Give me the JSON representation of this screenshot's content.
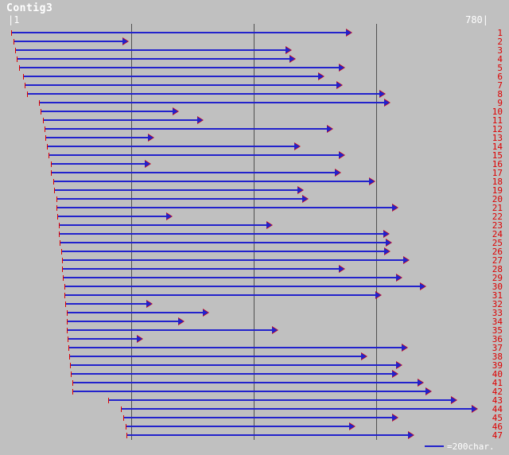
{
  "title": "Contig3",
  "scale": {
    "start_label": "|1",
    "end_label": "780|"
  },
  "legend": {
    "label": "=200char."
  },
  "colors": {
    "background": "#c0c0c0",
    "read_line": "#2222cc",
    "marker_red": "#dd0000",
    "text_white": "#ffffff",
    "gridline": "#505050"
  },
  "chart_data": {
    "type": "bar",
    "title": "Contig3",
    "subtitle": "",
    "xlabel": "",
    "ylabel": "",
    "xlim": [
      1,
      780
    ],
    "gridlines": [
      200,
      400,
      600
    ],
    "grid_interval_label": "=200char.",
    "direction_all_reads": "right",
    "reads": [
      {
        "id": 1,
        "start": 3,
        "end": 560
      },
      {
        "id": 2,
        "start": 8,
        "end": 196
      },
      {
        "id": 3,
        "start": 10,
        "end": 462
      },
      {
        "id": 4,
        "start": 13,
        "end": 469
      },
      {
        "id": 5,
        "start": 17,
        "end": 549
      },
      {
        "id": 6,
        "start": 23,
        "end": 515
      },
      {
        "id": 7,
        "start": 26,
        "end": 545
      },
      {
        "id": 8,
        "start": 29,
        "end": 615
      },
      {
        "id": 9,
        "start": 49,
        "end": 623
      },
      {
        "id": 10,
        "start": 51,
        "end": 277
      },
      {
        "id": 11,
        "start": 55,
        "end": 318
      },
      {
        "id": 12,
        "start": 58,
        "end": 529
      },
      {
        "id": 13,
        "start": 59,
        "end": 237
      },
      {
        "id": 14,
        "start": 62,
        "end": 476
      },
      {
        "id": 15,
        "start": 64,
        "end": 549
      },
      {
        "id": 16,
        "start": 68,
        "end": 232
      },
      {
        "id": 17,
        "start": 69,
        "end": 542
      },
      {
        "id": 18,
        "start": 72,
        "end": 598
      },
      {
        "id": 19,
        "start": 74,
        "end": 482
      },
      {
        "id": 20,
        "start": 77,
        "end": 489
      },
      {
        "id": 21,
        "start": 78,
        "end": 636
      },
      {
        "id": 22,
        "start": 79,
        "end": 267
      },
      {
        "id": 23,
        "start": 81,
        "end": 431
      },
      {
        "id": 24,
        "start": 82,
        "end": 622
      },
      {
        "id": 25,
        "start": 83,
        "end": 626
      },
      {
        "id": 26,
        "start": 85,
        "end": 623
      },
      {
        "id": 27,
        "start": 87,
        "end": 654
      },
      {
        "id": 28,
        "start": 87,
        "end": 549
      },
      {
        "id": 29,
        "start": 88,
        "end": 642
      },
      {
        "id": 30,
        "start": 90,
        "end": 681
      },
      {
        "id": 31,
        "start": 91,
        "end": 609
      },
      {
        "id": 32,
        "start": 92,
        "end": 235
      },
      {
        "id": 33,
        "start": 94,
        "end": 327
      },
      {
        "id": 34,
        "start": 94,
        "end": 286
      },
      {
        "id": 35,
        "start": 95,
        "end": 440
      },
      {
        "id": 36,
        "start": 96,
        "end": 219
      },
      {
        "id": 37,
        "start": 97,
        "end": 651
      },
      {
        "id": 38,
        "start": 99,
        "end": 585
      },
      {
        "id": 39,
        "start": 100,
        "end": 642
      },
      {
        "id": 40,
        "start": 101,
        "end": 636
      },
      {
        "id": 41,
        "start": 103,
        "end": 677
      },
      {
        "id": 42,
        "start": 104,
        "end": 690
      },
      {
        "id": 43,
        "start": 162,
        "end": 732
      },
      {
        "id": 44,
        "start": 183,
        "end": 766
      },
      {
        "id": 45,
        "start": 187,
        "end": 636
      },
      {
        "id": 46,
        "start": 190,
        "end": 566
      },
      {
        "id": 47,
        "start": 192,
        "end": 662
      }
    ]
  }
}
